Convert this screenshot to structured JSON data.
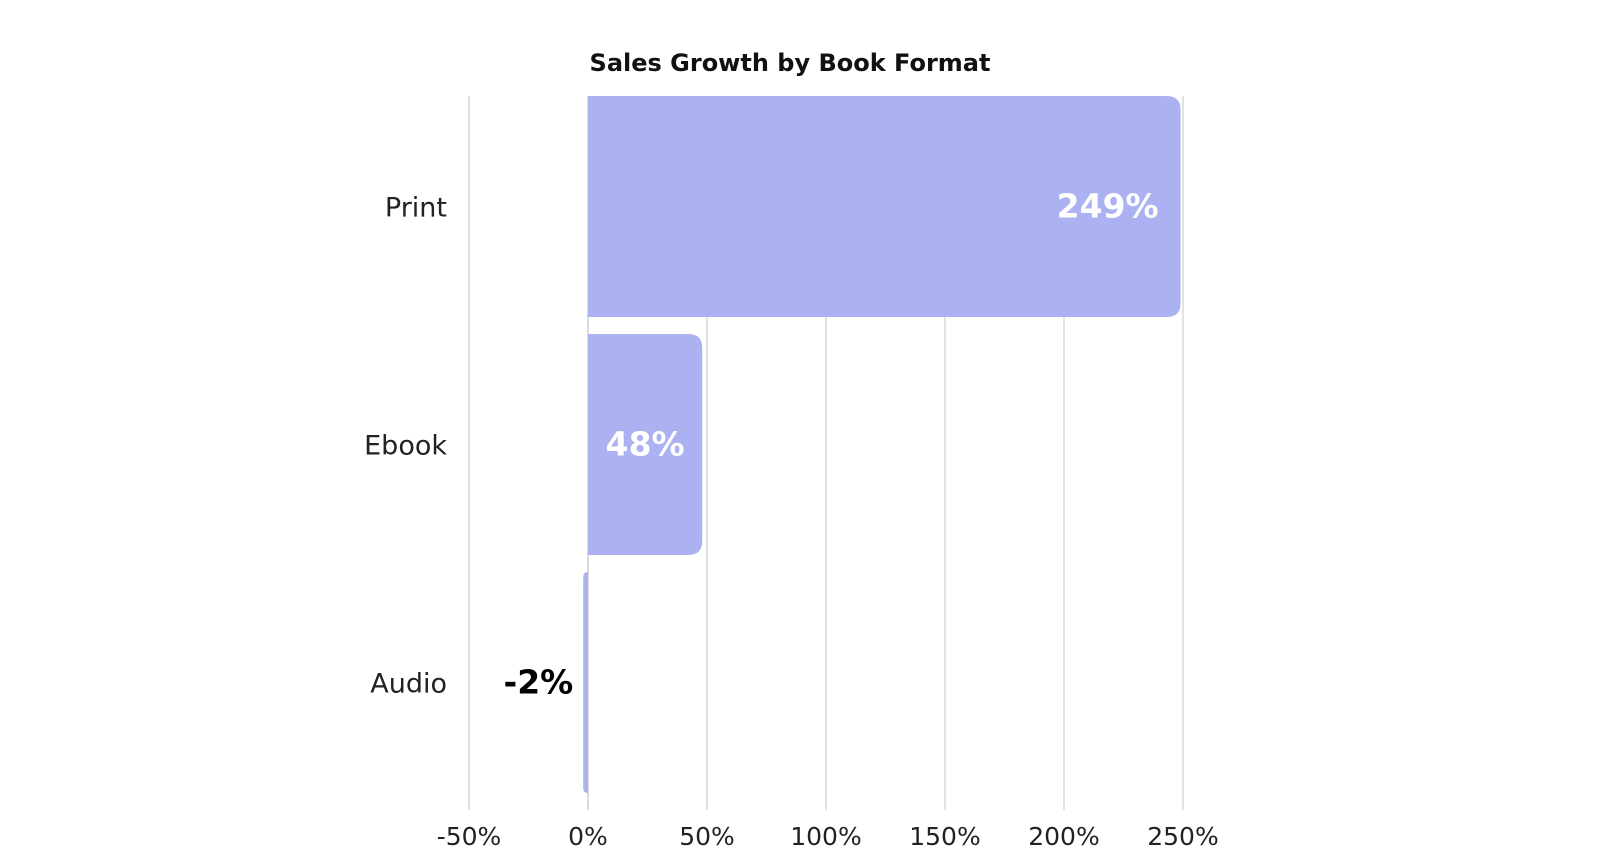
{
  "chart_data": {
    "type": "bar",
    "orientation": "horizontal",
    "title": "Sales Growth by Book Format",
    "xlabel": "",
    "ylabel": "",
    "categories": [
      "Print",
      "Ebook",
      "Audio"
    ],
    "values": [
      249,
      48,
      -2
    ],
    "data_labels": [
      "249%",
      "48%",
      "-2%"
    ],
    "xlim": [
      -50,
      250
    ],
    "x_ticks": [
      -50,
      0,
      50,
      100,
      150,
      200,
      250
    ],
    "x_tick_labels": [
      "-50%",
      "0%",
      "50%",
      "100%",
      "150%",
      "200%",
      "250%"
    ],
    "grid": "vertical",
    "legend": "none",
    "colors": {
      "bar": "#acb1f1",
      "grid": "#d9d9d9",
      "label_inside": "#ffffff",
      "label_outside": "#000000"
    }
  }
}
